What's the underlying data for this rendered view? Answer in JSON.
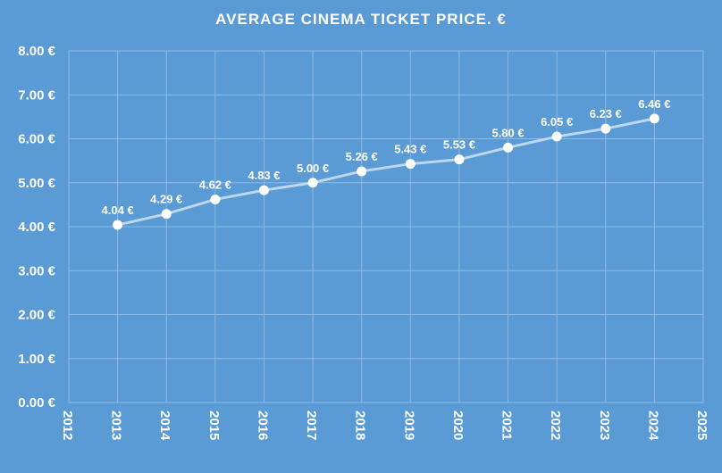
{
  "chart_data": {
    "type": "line",
    "title": "AVERAGE CINEMA TICKET PRICE. €",
    "x": [
      2013,
      2014,
      2015,
      2016,
      2017,
      2018,
      2019,
      2020,
      2021,
      2022,
      2023,
      2024
    ],
    "series": [
      {
        "values": [
          4.04,
          4.29,
          4.62,
          4.83,
          5.0,
          5.26,
          5.43,
          5.53,
          5.8,
          6.05,
          6.23,
          6.46
        ],
        "data_labels": [
          "4.04 €",
          "4.29 €",
          "4.62 €",
          "4.83 €",
          "5.00 €",
          "5.26 €",
          "5.43 €",
          "5.53 €",
          "5.80 €",
          "6.05 €",
          "6.23 €",
          "6.46 €"
        ]
      }
    ],
    "xlim": [
      2012,
      2025
    ],
    "ylim": [
      0,
      8
    ],
    "x_ticks": [
      "2012",
      "2013",
      "2014",
      "2015",
      "2016",
      "2017",
      "2018",
      "2019",
      "2020",
      "2021",
      "2022",
      "2023",
      "2024",
      "2025"
    ],
    "y_ticks": [
      "0.00 €",
      "1.00 €",
      "2.00 €",
      "3.00 €",
      "4.00 €",
      "5.00 €",
      "6.00 €",
      "7.00 €",
      "8.00 €"
    ],
    "grid": true,
    "legend": "none",
    "colors": {
      "background": "#5b9bd5",
      "line": "#bdd7ee",
      "marker": "#ffffff",
      "grid": "#8fb8e3",
      "text": "#ffffff"
    }
  }
}
